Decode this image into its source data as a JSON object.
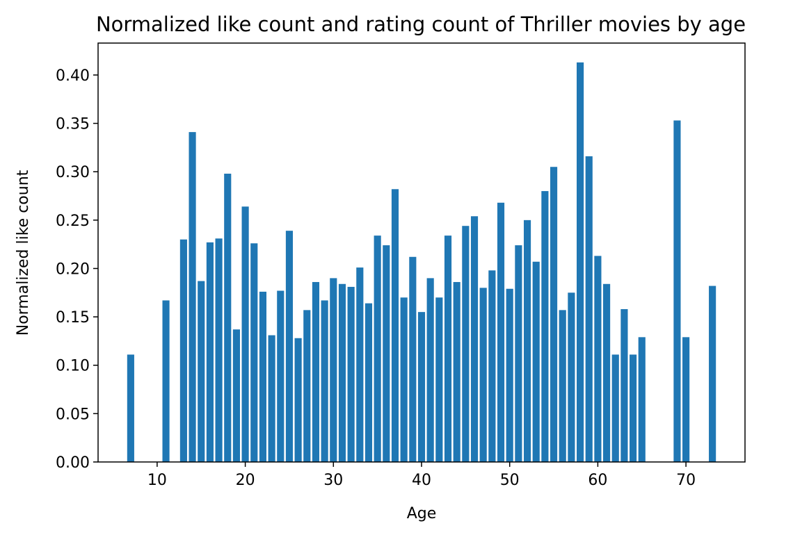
{
  "chart_data": {
    "type": "bar",
    "title": "Normalized like count and rating count of Thriller movies by age",
    "xlabel": "Age",
    "ylabel": "Normalized like count",
    "xlim": [
      3.3,
      76.7
    ],
    "ylim": [
      0,
      0.433
    ],
    "x_ticks": [
      10,
      20,
      30,
      40,
      50,
      60,
      70
    ],
    "y_ticks": [
      0.0,
      0.05,
      0.1,
      0.15,
      0.2,
      0.25,
      0.3,
      0.35,
      0.4
    ],
    "grid": false,
    "color": "#1f77b4",
    "x": [
      7,
      11,
      13,
      14,
      15,
      16,
      17,
      18,
      19,
      20,
      21,
      22,
      23,
      24,
      25,
      26,
      27,
      28,
      29,
      30,
      31,
      32,
      33,
      34,
      35,
      36,
      37,
      38,
      39,
      40,
      41,
      42,
      43,
      44,
      45,
      46,
      47,
      48,
      49,
      50,
      51,
      52,
      53,
      54,
      55,
      56,
      57,
      58,
      59,
      60,
      61,
      62,
      63,
      64,
      65,
      69,
      70,
      73
    ],
    "values": [
      0.111,
      0.167,
      0.23,
      0.341,
      0.187,
      0.227,
      0.231,
      0.298,
      0.137,
      0.264,
      0.226,
      0.176,
      0.131,
      0.177,
      0.239,
      0.128,
      0.157,
      0.186,
      0.167,
      0.19,
      0.184,
      0.181,
      0.201,
      0.164,
      0.234,
      0.224,
      0.282,
      0.17,
      0.212,
      0.155,
      0.19,
      0.17,
      0.234,
      0.186,
      0.244,
      0.254,
      0.18,
      0.198,
      0.268,
      0.179,
      0.224,
      0.25,
      0.207,
      0.28,
      0.305,
      0.157,
      0.175,
      0.413,
      0.316,
      0.213,
      0.184,
      0.111,
      0.158,
      0.111,
      0.129,
      0.353,
      0.129,
      0.182
    ]
  }
}
